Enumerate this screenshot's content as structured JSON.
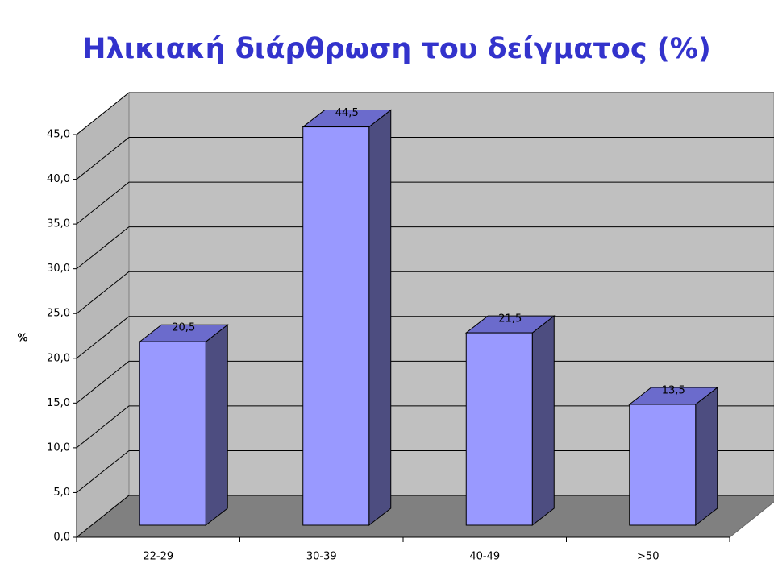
{
  "chart_data": {
    "type": "bar3d",
    "title": "Ηλικιακή διάρθρωση του δείγματος (%)",
    "y_label": "%",
    "categories": [
      "22-29",
      "30-39",
      "40-49",
      ">50"
    ],
    "values": [
      20.5,
      44.5,
      21.5,
      13.5
    ],
    "value_labels": [
      "20,5",
      "44,5",
      "21,5",
      "13,5"
    ],
    "color": "#9999ff",
    "ylim": [
      0,
      45
    ],
    "yticks": [
      {
        "value": 0,
        "label": "0,0"
      },
      {
        "value": 5,
        "label": "5,0"
      },
      {
        "value": 10,
        "label": "10,0"
      },
      {
        "value": 15,
        "label": "15,0"
      },
      {
        "value": 20,
        "label": "20,0"
      },
      {
        "value": 25,
        "label": "25,0"
      },
      {
        "value": 30,
        "label": "30,0"
      },
      {
        "value": 35,
        "label": "35,0"
      },
      {
        "value": 40,
        "label": "40,0"
      },
      {
        "value": 45,
        "label": "45,0"
      }
    ],
    "grid": true
  }
}
